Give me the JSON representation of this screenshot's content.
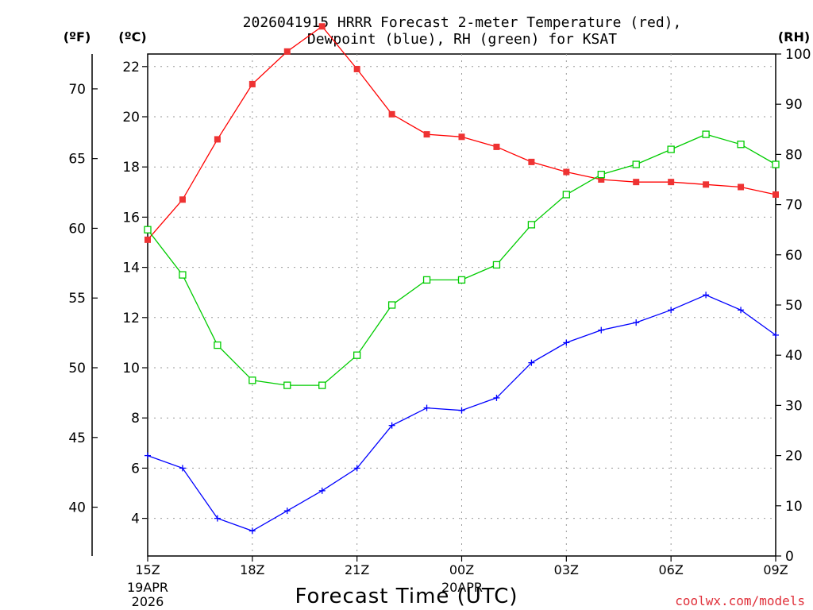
{
  "chart_data": {
    "type": "line",
    "title_line1": "2026041915 HRRR Forecast 2-meter Temperature (red),",
    "title_line2": "Dewpoint (blue), RH (green) for KSAT",
    "xlabel": "Forecast Time (UTC)",
    "x_ticks": [
      "15Z",
      "18Z",
      "21Z",
      "00Z",
      "03Z",
      "06Z",
      "09Z"
    ],
    "x_sub1": "19APR",
    "x_sub2": "2026",
    "x_sub_mid": "20APR",
    "left_unit_f": "(ºF)",
    "left_unit_c": "(ºC)",
    "right_unit": "(RH)",
    "watermark": "coolwx.com/models",
    "ylim_c": [
      2.5,
      22.5
    ],
    "ylim_rh": [
      0,
      100
    ],
    "f_ticks": [
      "40",
      "45",
      "50",
      "55",
      "60",
      "65",
      "70"
    ],
    "c_ticks": [
      "4",
      "6",
      "8",
      "10",
      "12",
      "14",
      "16",
      "18",
      "20",
      "22"
    ],
    "rh_ticks": [
      "0",
      "10",
      "20",
      "30",
      "40",
      "50",
      "60",
      "70",
      "80",
      "90",
      "100"
    ],
    "hours": [
      0,
      1,
      2,
      3,
      4,
      5,
      6,
      7,
      8,
      9,
      10,
      11,
      12,
      13,
      14,
      15,
      16,
      17,
      18
    ],
    "series": [
      {
        "name": "Temperature",
        "unit": "C",
        "color": "#ff0000",
        "values": [
          15.1,
          16.7,
          19.1,
          21.3,
          22.6,
          23.6,
          21.9,
          20.1,
          19.3,
          19.2,
          18.8,
          18.2,
          17.8,
          17.5,
          17.4,
          17.4,
          17.3,
          17.2,
          16.9
        ]
      },
      {
        "name": "Dewpoint",
        "unit": "C",
        "color": "#0000ff",
        "values": [
          6.5,
          6.0,
          4.0,
          3.5,
          4.3,
          5.1,
          6.0,
          7.7,
          8.4,
          8.3,
          8.8,
          10.2,
          11.0,
          11.5,
          11.8,
          12.3,
          12.9,
          12.3,
          11.3
        ]
      },
      {
        "name": "RH",
        "unit": "%",
        "color": "#00cc00",
        "values": [
          65,
          56,
          42,
          35,
          34,
          34,
          40,
          50,
          55,
          55,
          58,
          66,
          72,
          76,
          78,
          81,
          84,
          82,
          78
        ]
      }
    ]
  }
}
